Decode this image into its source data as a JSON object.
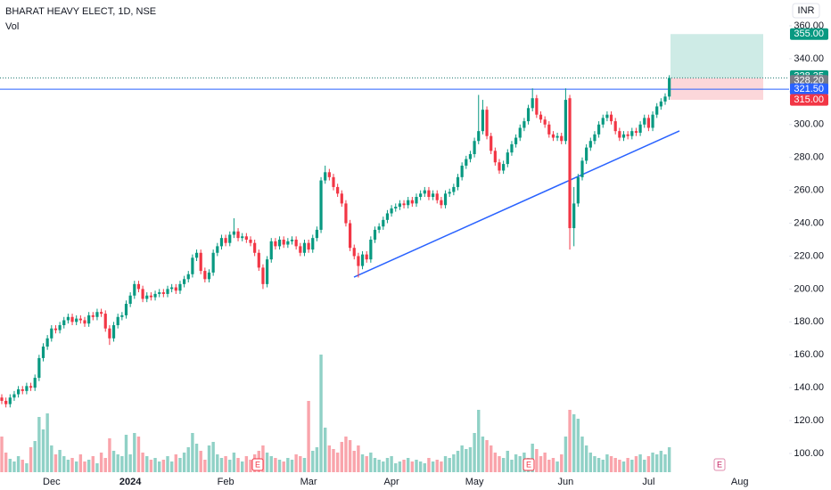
{
  "chart_data": {
    "type": "candlestick",
    "title": "BHARAT HEAVY ELECT, 1D, NSE",
    "subtitle": "Vol",
    "currency": "INR",
    "up_color": "#089981",
    "down_color": "#f23645",
    "ylim": [
      100,
      360
    ],
    "yticks": [
      {
        "value": 100,
        "label": "100.00"
      },
      {
        "value": 120,
        "label": "120.00"
      },
      {
        "value": 140,
        "label": "140.00"
      },
      {
        "value": 160,
        "label": "160.00"
      },
      {
        "value": 180,
        "label": "180.00"
      },
      {
        "value": 200,
        "label": "200.00"
      },
      {
        "value": 220,
        "label": "220.00"
      },
      {
        "value": 240,
        "label": "240.00"
      },
      {
        "value": 260,
        "label": "260.00"
      },
      {
        "value": 280,
        "label": "280.00"
      },
      {
        "value": 300,
        "label": "300.00"
      },
      {
        "value": 320,
        "label": "320.00"
      },
      {
        "value": 340,
        "label": "340.00"
      },
      {
        "value": 360,
        "label": "360.00"
      }
    ],
    "categories": [
      null,
      null,
      null,
      null,
      null,
      null,
      null,
      null,
      null,
      null,
      null,
      null,
      "Dec",
      null,
      null,
      null,
      null,
      null,
      null,
      null,
      null,
      null,
      null,
      null,
      null,
      null,
      null,
      null,
      null,
      null,
      null,
      "2024",
      null,
      null,
      null,
      null,
      null,
      null,
      null,
      null,
      null,
      null,
      null,
      null,
      null,
      null,
      null,
      null,
      null,
      null,
      null,
      null,
      null,
      null,
      "Feb",
      null,
      null,
      null,
      null,
      null,
      null,
      null,
      null,
      null,
      null,
      null,
      null,
      null,
      null,
      null,
      null,
      null,
      null,
      null,
      "Mar",
      null,
      null,
      null,
      null,
      null,
      null,
      null,
      null,
      null,
      null,
      null,
      null,
      null,
      null,
      null,
      null,
      null,
      null,
      null,
      "Apr",
      null,
      null,
      null,
      null,
      null,
      null,
      null,
      null,
      null,
      null,
      null,
      null,
      null,
      null,
      null,
      null,
      null,
      null,
      null,
      "May",
      null,
      null,
      null,
      null,
      null,
      null,
      null,
      null,
      null,
      null,
      null,
      null,
      null,
      null,
      null,
      null,
      null,
      null,
      null,
      null,
      null,
      "Jun",
      null,
      null,
      null,
      null,
      null,
      null,
      null,
      null,
      null,
      null,
      null,
      null,
      null,
      null,
      null,
      null,
      null,
      null,
      null,
      "Jul",
      null,
      null,
      null,
      null,
      null,
      null,
      null,
      null,
      null,
      null,
      null,
      null,
      null,
      null,
      null,
      null,
      null,
      null,
      null,
      null,
      null,
      "Aug",
      null,
      null,
      null,
      null,
      null
    ],
    "open": [
      134,
      132,
      130,
      134,
      136,
      139,
      138,
      141,
      140,
      146,
      158,
      165,
      170,
      176,
      175,
      178,
      181,
      183,
      180,
      182,
      181,
      179,
      184,
      183,
      186,
      185,
      176,
      170,
      178,
      183,
      184,
      191,
      196,
      203,
      200,
      194,
      196,
      195,
      197,
      198,
      197,
      200,
      201,
      199,
      203,
      206,
      209,
      219,
      222,
      211,
      206,
      210,
      222,
      226,
      231,
      228,
      233,
      235,
      231,
      232,
      230,
      228,
      222,
      213,
      203,
      218,
      229,
      226,
      230,
      227,
      229,
      230,
      226,
      222,
      228,
      224,
      231,
      236,
      266,
      271,
      268,
      262,
      258,
      252,
      240,
      225,
      220,
      214,
      221,
      218,
      230,
      236,
      238,
      242,
      246,
      249,
      250,
      252,
      251,
      254,
      252,
      256,
      258,
      260,
      256,
      258,
      254,
      251,
      258,
      259,
      262,
      268,
      275,
      279,
      282,
      290,
      296,
      309,
      293,
      284,
      277,
      272,
      276,
      283,
      288,
      292,
      298,
      302,
      310,
      316,
      306,
      303,
      300,
      294,
      292,
      293,
      290,
      316,
      237,
      252,
      268,
      278,
      286,
      290,
      294,
      300,
      304,
      306,
      302,
      296,
      292,
      294,
      293,
      296,
      295,
      300,
      304,
      298,
      306,
      311,
      314,
      317,
      null,
      null,
      null,
      null,
      null,
      null,
      null,
      null,
      null,
      null,
      null,
      null,
      null,
      null,
      null,
      null,
      null,
      null,
      null,
      null,
      null,
      null
    ],
    "high": [
      136,
      134,
      136,
      138,
      141,
      141,
      143,
      143,
      148,
      160,
      167,
      172,
      178,
      178,
      180,
      183,
      185,
      185,
      184,
      184,
      183,
      186,
      186,
      188,
      188,
      187,
      178,
      180,
      185,
      186,
      193,
      198,
      205,
      205,
      202,
      198,
      198,
      199,
      200,
      200,
      202,
      203,
      203,
      205,
      208,
      211,
      221,
      224,
      224,
      213,
      212,
      224,
      228,
      233,
      233,
      235,
      243,
      237,
      234,
      234,
      232,
      230,
      224,
      215,
      220,
      231,
      231,
      232,
      232,
      231,
      232,
      232,
      228,
      230,
      230,
      233,
      238,
      268,
      275,
      273,
      270,
      264,
      260,
      254,
      242,
      227,
      222,
      223,
      223,
      232,
      238,
      240,
      244,
      248,
      251,
      252,
      254,
      254,
      256,
      256,
      258,
      260,
      262,
      262,
      260,
      260,
      256,
      260,
      261,
      264,
      270,
      277,
      281,
      284,
      292,
      318,
      315,
      311,
      295,
      286,
      279,
      278,
      285,
      290,
      294,
      300,
      304,
      312,
      322,
      318,
      308,
      305,
      302,
      296,
      295,
      295,
      322,
      318,
      262,
      270,
      280,
      288,
      292,
      296,
      302,
      306,
      308,
      308,
      304,
      298,
      296,
      296,
      298,
      298,
      302,
      306,
      306,
      308,
      313,
      316,
      319,
      330,
      null,
      null,
      null,
      null,
      null,
      null,
      null,
      null,
      null,
      null,
      null,
      null,
      null,
      null,
      null,
      null,
      null,
      null,
      null,
      null,
      null,
      null
    ],
    "low": [
      130,
      128,
      128,
      132,
      134,
      136,
      136,
      138,
      138,
      144,
      156,
      163,
      168,
      173,
      173,
      176,
      179,
      178,
      178,
      179,
      177,
      177,
      181,
      181,
      183,
      174,
      166,
      168,
      176,
      181,
      182,
      189,
      194,
      198,
      192,
      192,
      193,
      193,
      195,
      195,
      195,
      198,
      197,
      197,
      201,
      204,
      207,
      217,
      209,
      204,
      204,
      208,
      220,
      224,
      226,
      226,
      231,
      229,
      229,
      228,
      226,
      220,
      211,
      200,
      201,
      216,
      224,
      224,
      225,
      225,
      227,
      224,
      220,
      220,
      222,
      222,
      229,
      234,
      264,
      266,
      260,
      256,
      250,
      238,
      223,
      218,
      207,
      212,
      216,
      216,
      228,
      234,
      236,
      240,
      244,
      247,
      248,
      249,
      249,
      250,
      250,
      254,
      256,
      254,
      254,
      252,
      249,
      249,
      256,
      257,
      260,
      266,
      273,
      277,
      280,
      288,
      294,
      291,
      282,
      275,
      270,
      270,
      274,
      281,
      286,
      290,
      296,
      300,
      308,
      304,
      301,
      298,
      292,
      290,
      290,
      288,
      288,
      224,
      226,
      250,
      266,
      276,
      284,
      288,
      292,
      298,
      302,
      300,
      294,
      290,
      290,
      291,
      291,
      293,
      293,
      298,
      296,
      296,
      304,
      309,
      312,
      315,
      null,
      null,
      null,
      null,
      null,
      null,
      null,
      null,
      null,
      null,
      null,
      null,
      null,
      null,
      null,
      null,
      null,
      null,
      null,
      null,
      null,
      null
    ],
    "close": [
      132,
      130,
      134,
      136,
      139,
      138,
      141,
      140,
      146,
      158,
      165,
      170,
      176,
      175,
      178,
      181,
      183,
      180,
      182,
      181,
      179,
      184,
      183,
      186,
      185,
      176,
      170,
      178,
      183,
      184,
      191,
      196,
      203,
      200,
      194,
      196,
      195,
      197,
      198,
      197,
      200,
      201,
      199,
      203,
      206,
      209,
      219,
      222,
      211,
      206,
      210,
      222,
      226,
      231,
      228,
      233,
      235,
      231,
      232,
      230,
      228,
      222,
      213,
      203,
      218,
      229,
      226,
      230,
      227,
      229,
      230,
      226,
      222,
      228,
      224,
      231,
      236,
      266,
      271,
      268,
      262,
      258,
      252,
      240,
      225,
      220,
      214,
      221,
      218,
      230,
      236,
      238,
      242,
      246,
      249,
      250,
      252,
      251,
      254,
      252,
      256,
      258,
      260,
      256,
      258,
      254,
      251,
      258,
      259,
      262,
      268,
      275,
      279,
      282,
      290,
      296,
      309,
      293,
      284,
      277,
      272,
      276,
      283,
      288,
      292,
      298,
      302,
      310,
      316,
      306,
      303,
      300,
      294,
      292,
      293,
      290,
      315,
      237,
      252,
      268,
      278,
      286,
      290,
      294,
      300,
      304,
      306,
      302,
      296,
      292,
      294,
      293,
      296,
      295,
      300,
      304,
      298,
      306,
      311,
      314,
      317,
      328.35,
      null,
      null,
      null,
      null,
      null,
      null,
      null,
      null,
      null,
      null,
      null,
      null,
      null,
      null,
      null,
      null,
      null,
      null,
      null,
      null,
      null,
      null
    ],
    "volume": [
      40,
      22,
      15,
      12,
      18,
      14,
      10,
      28,
      35,
      62,
      48,
      66,
      30,
      20,
      25,
      18,
      14,
      16,
      12,
      20,
      12,
      14,
      18,
      10,
      22,
      16,
      38,
      24,
      20,
      18,
      42,
      20,
      44,
      40,
      22,
      18,
      14,
      16,
      12,
      14,
      18,
      12,
      20,
      16,
      22,
      28,
      44,
      32,
      24,
      14,
      30,
      34,
      20,
      16,
      18,
      14,
      22,
      16,
      12,
      18,
      14,
      20,
      24,
      30,
      22,
      18,
      16,
      14,
      12,
      16,
      14,
      20,
      18,
      16,
      80,
      24,
      28,
      132,
      50,
      30,
      26,
      22,
      34,
      40,
      36,
      24,
      30,
      20,
      18,
      22,
      16,
      14,
      12,
      16,
      18,
      10,
      12,
      14,
      16,
      12,
      14,
      12,
      10,
      16,
      12,
      14,
      12,
      18,
      16,
      20,
      24,
      30,
      26,
      28,
      44,
      70,
      40,
      36,
      30,
      22,
      18,
      16,
      24,
      14,
      20,
      18,
      22,
      16,
      32,
      26,
      18,
      22,
      14,
      16,
      12,
      20,
      40,
      70,
      65,
      60,
      40,
      30,
      22,
      18,
      16,
      14,
      20,
      18,
      16,
      14,
      12,
      16,
      14,
      18,
      20,
      14,
      18,
      22,
      20,
      24,
      20,
      28,
      null,
      null,
      null,
      null,
      null,
      null,
      null,
      null,
      null,
      null,
      null,
      null,
      null,
      null,
      null,
      null,
      null,
      null,
      null,
      null,
      null,
      null
    ],
    "price_labels": [
      {
        "value": 355,
        "label": "355.00",
        "color": "#089981"
      },
      {
        "value": 328.35,
        "color": "#089981"
      },
      {
        "value": 328.2,
        "label": "328.20",
        "color": "#787b86"
      },
      {
        "value": 321.5,
        "label": "321.50",
        "color": "#2962ff"
      },
      {
        "value": 315,
        "label": "315.00",
        "color": "#f23645"
      }
    ],
    "trendline": {
      "start": 207.2,
      "end": 296.1,
      "color": "#2962ff"
    },
    "earnings": [
      "E",
      "E",
      "E"
    ]
  }
}
